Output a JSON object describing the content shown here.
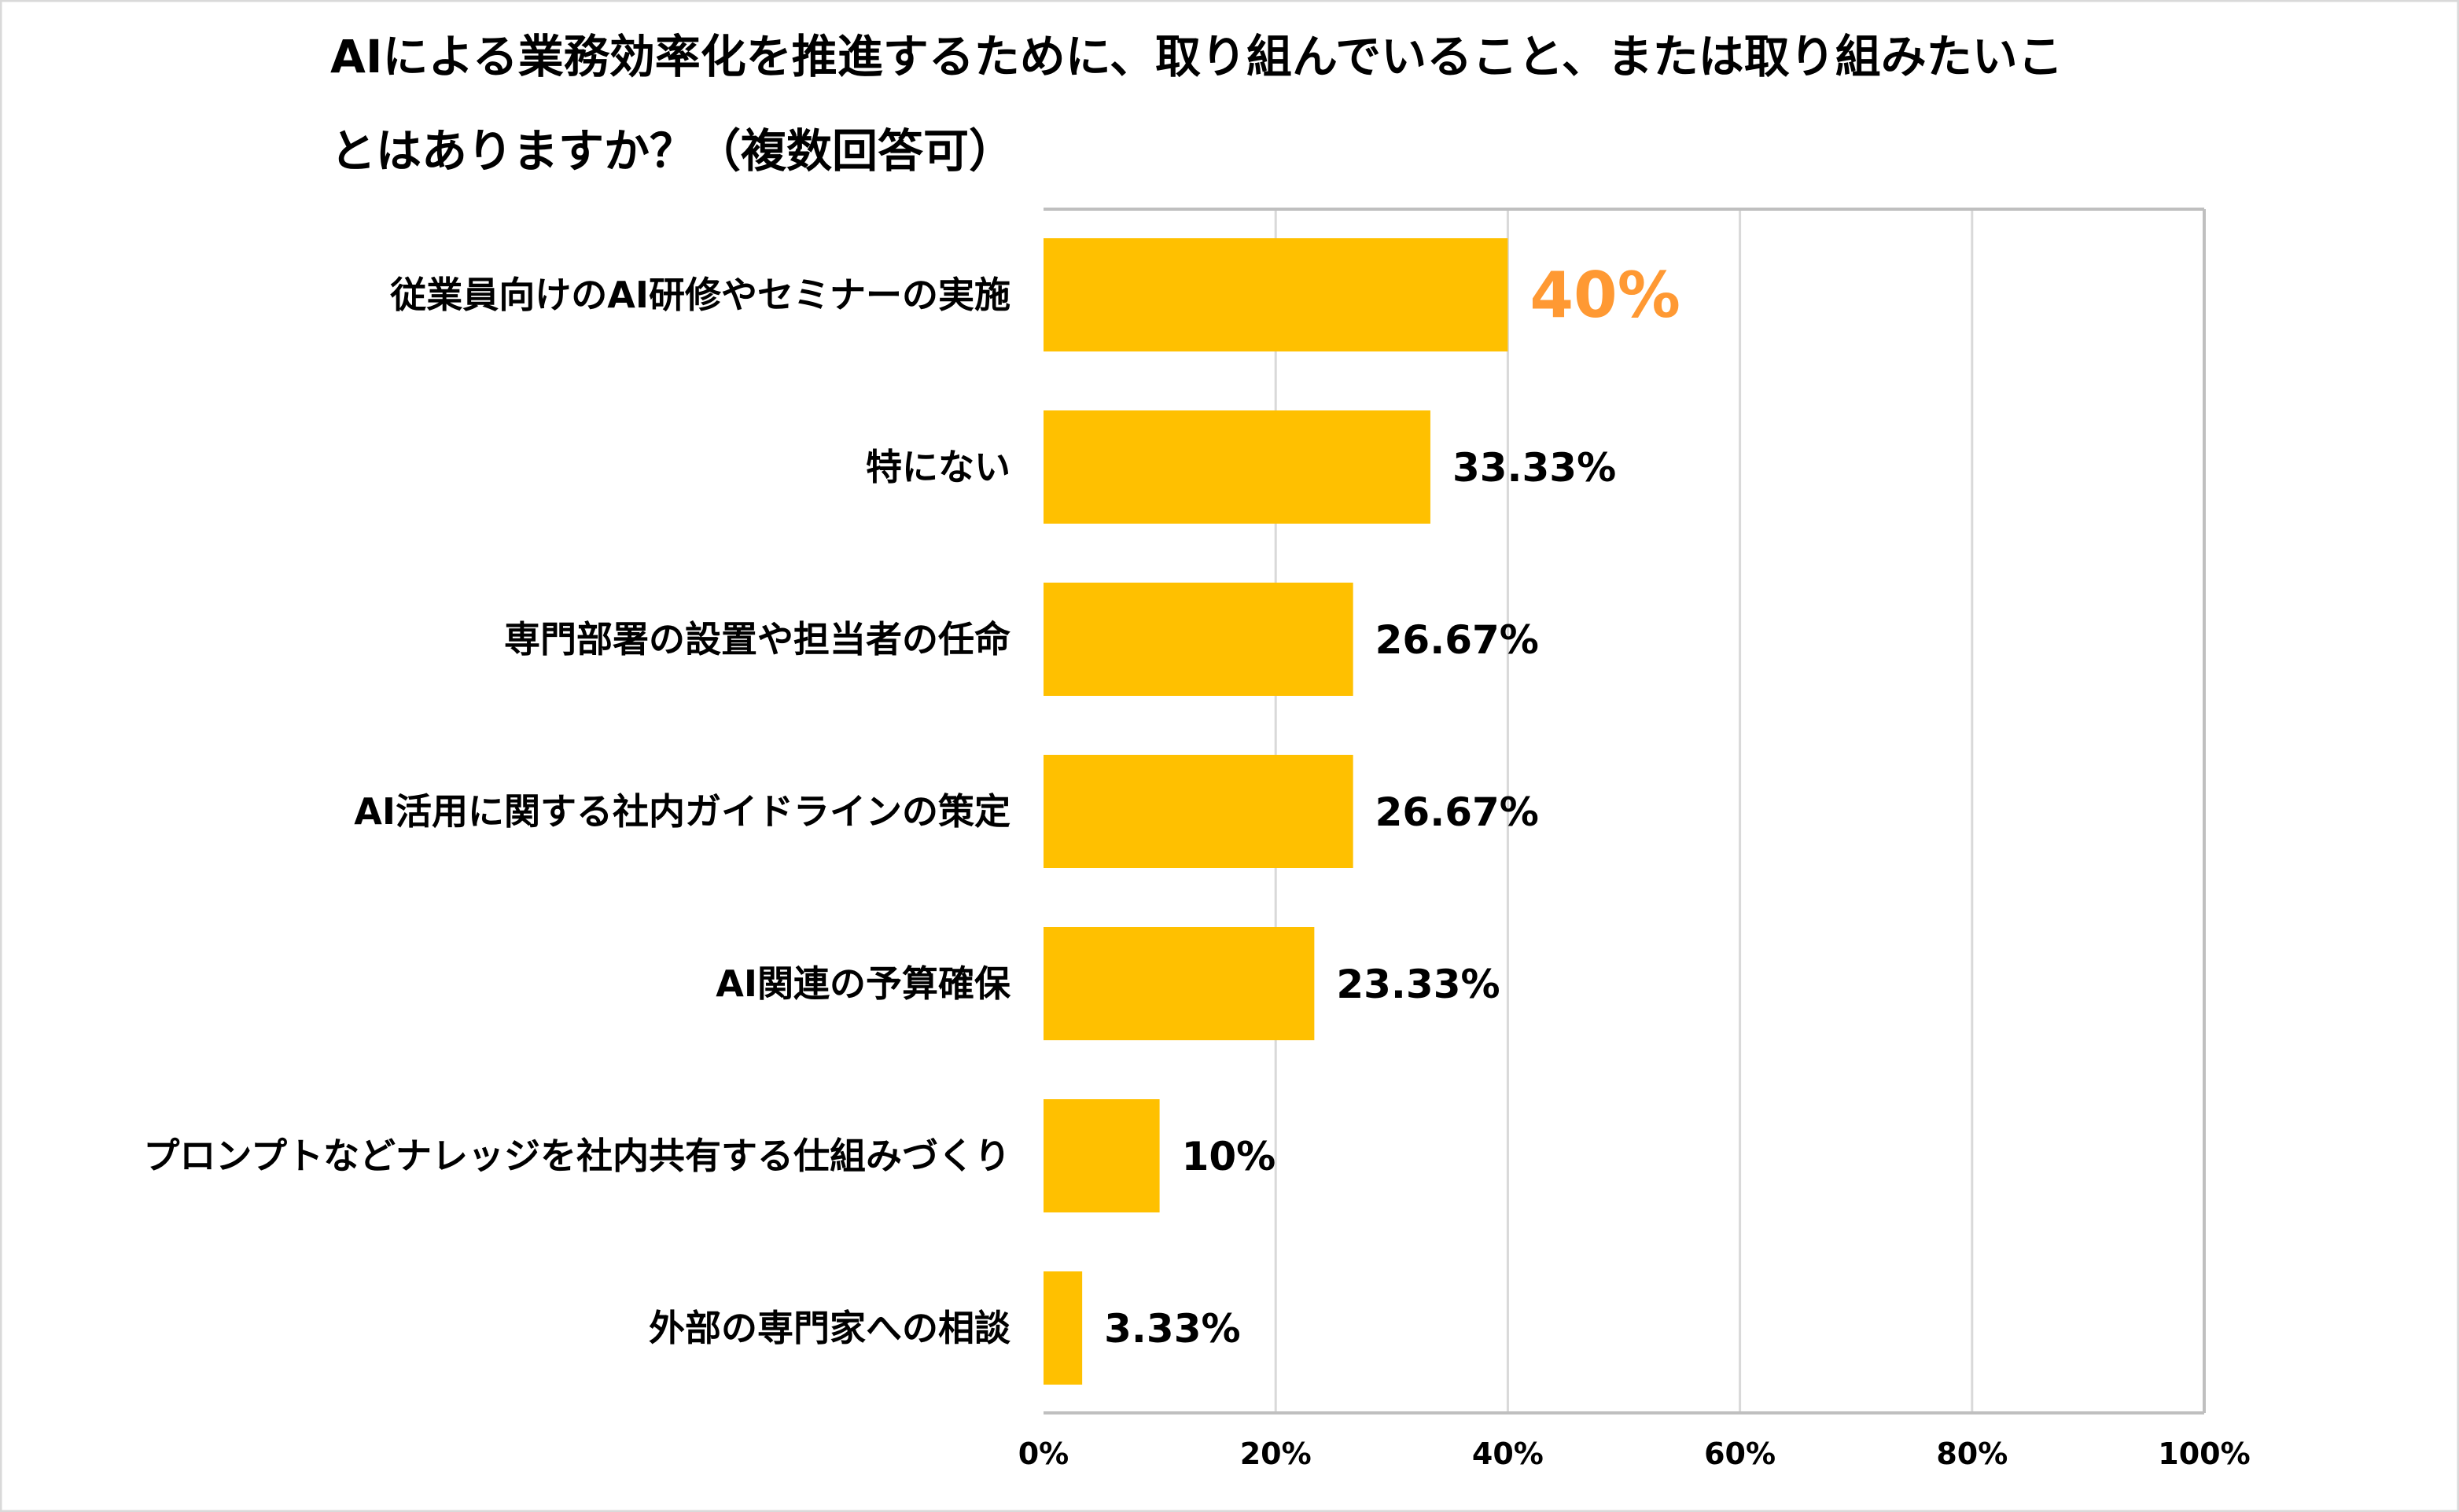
{
  "chart_data": {
    "type": "bar",
    "orientation": "horizontal",
    "title_lines": [
      "AIによる業務効率化を推進するために、取り組んでいること、または取り組みたいこ",
      "とはありますか？（複数回答可）"
    ],
    "categories": [
      "従業員向けのAI研修やセミナーの実施",
      "特にない",
      "専門部署の設置や担当者の任命",
      "AI活用に関する社内ガイドラインの策定",
      "AI関連の予算確保",
      "プロンプトなどナレッジを社内共有する仕組みづくり",
      "外部の専門家への相談"
    ],
    "values": [
      40,
      33.33,
      26.67,
      26.67,
      23.33,
      10,
      3.33
    ],
    "data_labels": [
      "40%",
      "33.33%",
      "26.67%",
      "26.67%",
      "23.33%",
      "10%",
      "3.33%"
    ],
    "highlight_index": 0,
    "xlim": [
      0,
      100
    ],
    "xticks": [
      "0%",
      "20%",
      "40%",
      "60%",
      "80%",
      "100%"
    ],
    "grid": true,
    "colors": {
      "bar": "#FFC000",
      "highlight_label": "#FF9933",
      "label": "#000000",
      "grid": "#D9D9D9",
      "axis": "#BFBFBF"
    }
  }
}
